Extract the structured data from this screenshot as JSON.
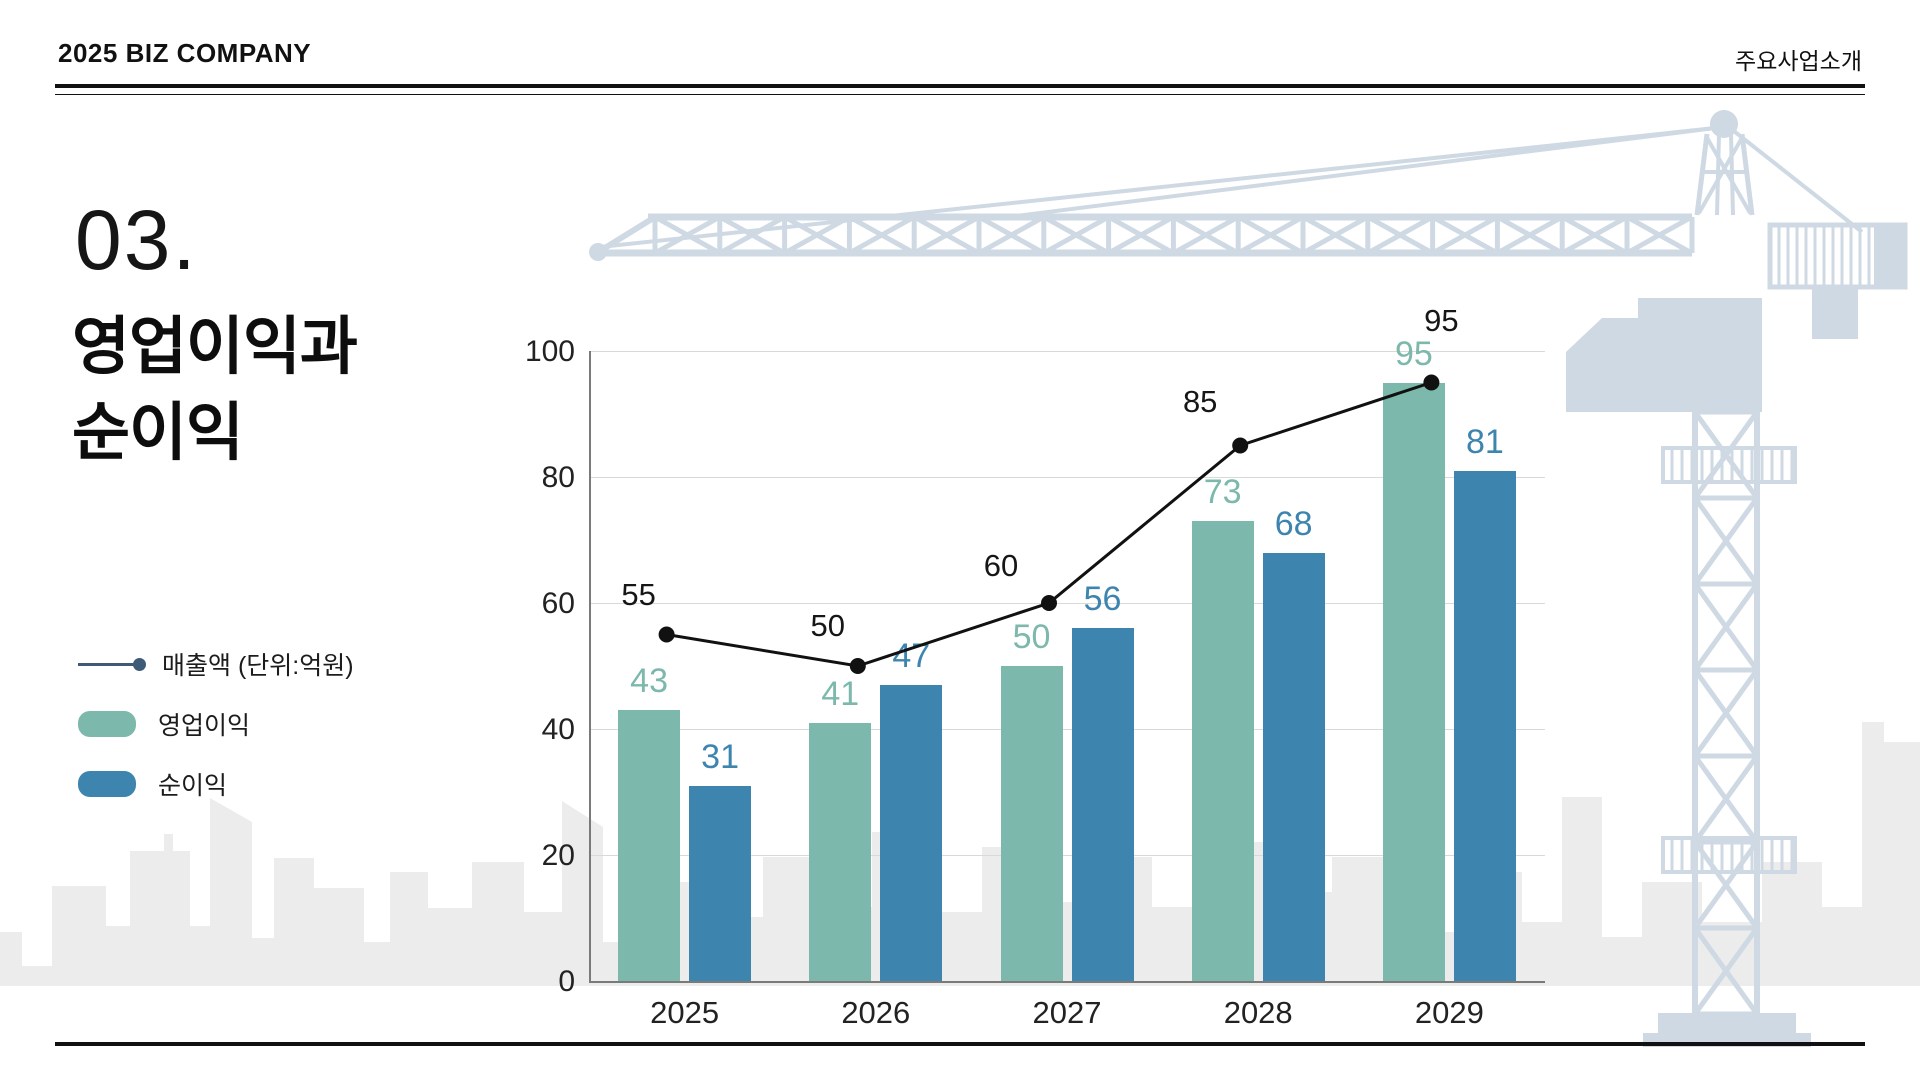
{
  "header": {
    "company": "2025 BIZ COMPANY",
    "section": "주요사업소개"
  },
  "title": {
    "number": "03.",
    "line1": "영업이익과",
    "line2": "순이익"
  },
  "legend": {
    "items": [
      {
        "type": "line",
        "label": "매출액 (단위:억원)",
        "color": "#3e5a77"
      },
      {
        "type": "swatch",
        "label": "영업이익",
        "color": "#7cb8ab"
      },
      {
        "type": "swatch",
        "label": "순이익",
        "color": "#3d85ae"
      }
    ]
  },
  "chart_data": {
    "type": "bar",
    "subtype": "grouped-bars-with-line",
    "categories": [
      "2025",
      "2026",
      "2027",
      "2028",
      "2029"
    ],
    "series": [
      {
        "name": "영업이익",
        "type": "bar",
        "color": "#7cb8ab",
        "values": [
          43,
          41,
          50,
          73,
          95
        ]
      },
      {
        "name": "순이익",
        "type": "bar",
        "color": "#3d85ae",
        "values": [
          31,
          47,
          56,
          68,
          81
        ]
      },
      {
        "name": "매출액 (단위:억원)",
        "type": "line",
        "color": "#111111",
        "point_color": "#111111",
        "values": [
          55,
          50,
          60,
          85,
          95
        ]
      }
    ],
    "ylim": [
      0,
      100
    ],
    "yticks": [
      0,
      20,
      40,
      60,
      80,
      100
    ],
    "grid": true,
    "legend_position": "left",
    "value_labels": true
  },
  "colors": {
    "grid": "#d9d9d9",
    "axis": "#7a7a7a",
    "skyline": "#ececec",
    "crane": "#cfd9e3",
    "rule": "#111111"
  }
}
